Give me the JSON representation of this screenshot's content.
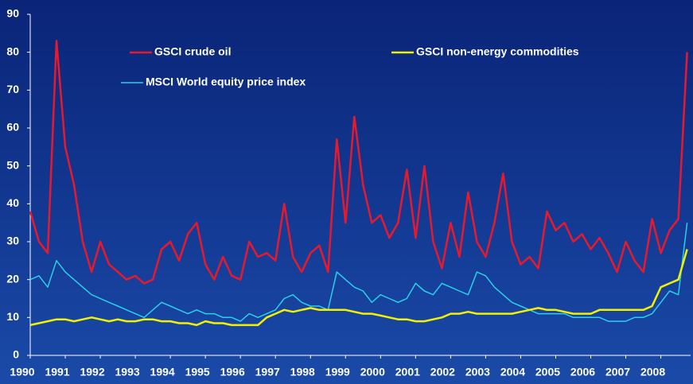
{
  "chart_data": {
    "type": "line",
    "x": [
      1990,
      1990.25,
      1990.5,
      1990.75,
      1991,
      1991.25,
      1991.5,
      1991.75,
      1992,
      1992.25,
      1992.5,
      1992.75,
      1993,
      1993.25,
      1993.5,
      1993.75,
      1994,
      1994.25,
      1994.5,
      1994.75,
      1995,
      1995.25,
      1995.5,
      1995.75,
      1996,
      1996.25,
      1996.5,
      1996.75,
      1997,
      1997.25,
      1997.5,
      1997.75,
      1998,
      1998.25,
      1998.5,
      1998.75,
      1999,
      1999.25,
      1999.5,
      1999.75,
      2000,
      2000.25,
      2000.5,
      2000.75,
      2001,
      2001.25,
      2001.5,
      2001.75,
      2002,
      2002.25,
      2002.5,
      2002.75,
      2003,
      2003.25,
      2003.5,
      2003.75,
      2004,
      2004.25,
      2004.5,
      2004.75,
      2005,
      2005.25,
      2005.5,
      2005.75,
      2006,
      2006.25,
      2006.5,
      2006.75,
      2007,
      2007.25,
      2007.5,
      2007.75,
      2008,
      2008.25,
      2008.5,
      2008.75
    ],
    "series": [
      {
        "name": "GSCI crude oil",
        "color": "#e8192c",
        "values": [
          38,
          30,
          27,
          83,
          55,
          45,
          30,
          22,
          30,
          24,
          22,
          20,
          21,
          19,
          20,
          28,
          30,
          25,
          32,
          35,
          24,
          20,
          26,
          21,
          20,
          30,
          26,
          27,
          25,
          40,
          26,
          22,
          27,
          29,
          22,
          57,
          35,
          63,
          45,
          35,
          37,
          31,
          35,
          49,
          31,
          50,
          30,
          23,
          35,
          26,
          43,
          30,
          26,
          35,
          48,
          30,
          24,
          26,
          23,
          38,
          33,
          35,
          30,
          32,
          28,
          31,
          27,
          22,
          30,
          25,
          22,
          36,
          27,
          33,
          36,
          80
        ]
      },
      {
        "name": "GSCI non-energy commodities",
        "color": "#f2f200",
        "values": [
          8,
          8.5,
          9,
          9.5,
          9.5,
          9,
          9.5,
          10,
          9.5,
          9,
          9.5,
          9,
          9,
          9.5,
          9.5,
          9,
          9,
          8.5,
          8.5,
          8,
          9,
          8.5,
          8.5,
          8,
          8,
          8,
          8,
          10,
          11,
          12,
          11.5,
          12,
          12.5,
          12,
          12,
          12,
          12,
          11.5,
          11,
          11,
          10.5,
          10,
          9.5,
          9.5,
          9,
          9,
          9.5,
          10,
          11,
          11,
          11.5,
          11,
          11,
          11,
          11,
          11,
          11.5,
          12,
          12.5,
          12,
          12,
          11.5,
          11,
          11,
          11,
          12,
          12,
          12,
          12,
          12,
          12,
          13,
          18,
          19,
          20,
          28
        ]
      },
      {
        "name": "MSCI World equity price index",
        "color": "#2ad0e8",
        "values": [
          20,
          21,
          18,
          25,
          22,
          20,
          18,
          16,
          15,
          14,
          13,
          12,
          11,
          10,
          12,
          14,
          13,
          12,
          11,
          12,
          11,
          11,
          10,
          10,
          9,
          11,
          10,
          11,
          12,
          15,
          16,
          14,
          13,
          13,
          12,
          22,
          20,
          18,
          17,
          14,
          16,
          15,
          14,
          15,
          19,
          17,
          16,
          19,
          18,
          17,
          16,
          22,
          21,
          18,
          16,
          14,
          13,
          12,
          11,
          11,
          11,
          11,
          10,
          10,
          10,
          10,
          9,
          9,
          9,
          10,
          10,
          11,
          14,
          17,
          16,
          35
        ]
      }
    ],
    "xlim": [
      1990,
      2008.85
    ],
    "xticks": [
      1990,
      1991,
      1992,
      1993,
      1994,
      1995,
      1996,
      1997,
      1998,
      1999,
      2000,
      2001,
      2002,
      2003,
      2004,
      2005,
      2006,
      2007,
      2008
    ],
    "ylim": [
      0,
      90
    ],
    "yticks": [
      0,
      10,
      20,
      30,
      40,
      50,
      60,
      70,
      80,
      90
    ],
    "grid": false
  }
}
